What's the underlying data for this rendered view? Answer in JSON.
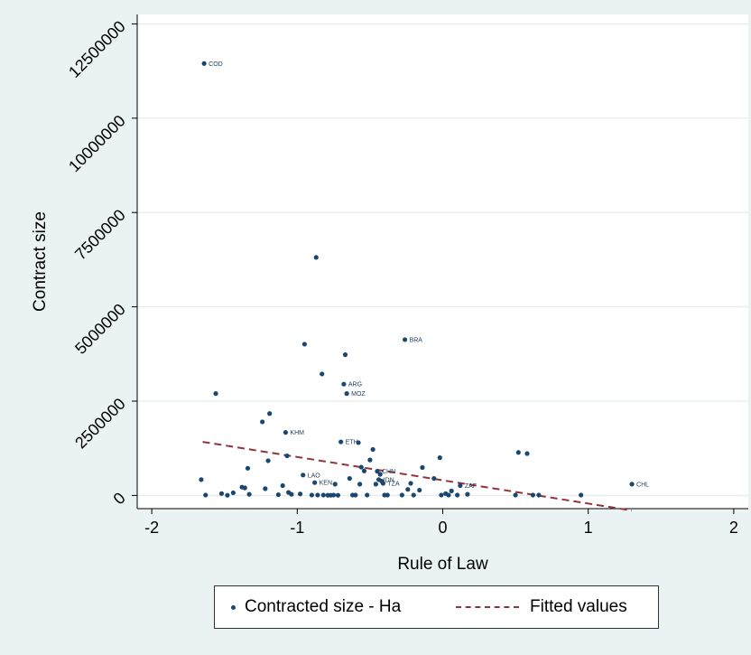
{
  "chart_data": {
    "type": "scatter",
    "xlabel": "Rule of Law",
    "ylabel": "Contract size",
    "xlim": [
      -2.1,
      2.1
    ],
    "ylim": [
      -350000,
      12750000
    ],
    "x_ticks": [
      -2,
      -1,
      0,
      1,
      2
    ],
    "x_tick_labels": [
      "-2",
      "-1",
      "0",
      "1",
      "2"
    ],
    "y_ticks": [
      0,
      2500000,
      5000000,
      7500000,
      10000000,
      12500000
    ],
    "y_tick_labels": [
      "0",
      "2500000",
      "5000000",
      "7500000",
      "10000000",
      "12500000"
    ],
    "grid": "horizontal",
    "colors": {
      "points": "#1a476f",
      "fit": "#90353b",
      "plot_bg": "#ffffff",
      "outer_bg": "#eaf2f3"
    },
    "legend": {
      "position": "bottom",
      "entries": [
        "Contracted size - Ha",
        "Fitted values"
      ]
    },
    "series": [
      {
        "name": "Contracted size - Ha",
        "type": "scatter",
        "points": [
          {
            "x": -1.64,
            "y": 11450000,
            "label": "COD"
          },
          {
            "x": -1.56,
            "y": 2700000
          },
          {
            "x": -1.66,
            "y": 420000
          },
          {
            "x": -1.63,
            "y": 10000
          },
          {
            "x": -1.52,
            "y": 50000
          },
          {
            "x": -1.48,
            "y": 5000
          },
          {
            "x": -1.44,
            "y": 70000
          },
          {
            "x": -1.38,
            "y": 220000
          },
          {
            "x": -1.36,
            "y": 200000
          },
          {
            "x": -1.34,
            "y": 720000
          },
          {
            "x": -1.33,
            "y": 30000
          },
          {
            "x": -1.24,
            "y": 1950000
          },
          {
            "x": -1.22,
            "y": 180000
          },
          {
            "x": -1.2,
            "y": 920000
          },
          {
            "x": -1.19,
            "y": 2170000
          },
          {
            "x": -1.13,
            "y": 20000
          },
          {
            "x": -1.1,
            "y": 260000
          },
          {
            "x": -1.08,
            "y": 1670000,
            "label": "KHM"
          },
          {
            "x": -1.07,
            "y": 1050000
          },
          {
            "x": -1.06,
            "y": 80000
          },
          {
            "x": -1.04,
            "y": 30000
          },
          {
            "x": -0.98,
            "y": 40000
          },
          {
            "x": -0.96,
            "y": 540000,
            "label": "LAO"
          },
          {
            "x": -0.95,
            "y": 4010000
          },
          {
            "x": -0.9,
            "y": 10000
          },
          {
            "x": -0.88,
            "y": 340000,
            "label": "KEN"
          },
          {
            "x": -0.87,
            "y": 6310000
          },
          {
            "x": -0.86,
            "y": 10000
          },
          {
            "x": -0.83,
            "y": 3220000
          },
          {
            "x": -0.82,
            "y": 10000
          },
          {
            "x": -0.79,
            "y": 5000
          },
          {
            "x": -0.77,
            "y": 5000
          },
          {
            "x": -0.75,
            "y": 10000
          },
          {
            "x": -0.74,
            "y": 300000
          },
          {
            "x": -0.72,
            "y": 5000
          },
          {
            "x": -0.7,
            "y": 1420000,
            "label": "ETH"
          },
          {
            "x": -0.68,
            "y": 2950000,
            "label": "ARG"
          },
          {
            "x": -0.67,
            "y": 3730000
          },
          {
            "x": -0.66,
            "y": 2700000,
            "label": "MOZ"
          },
          {
            "x": -0.64,
            "y": 450000
          },
          {
            "x": -0.62,
            "y": 10000
          },
          {
            "x": -0.6,
            "y": 10000
          },
          {
            "x": -0.58,
            "y": 1400000
          },
          {
            "x": -0.57,
            "y": 300000
          },
          {
            "x": -0.56,
            "y": 750000
          },
          {
            "x": -0.54,
            "y": 650000
          },
          {
            "x": -0.52,
            "y": 10000
          },
          {
            "x": -0.5,
            "y": 940000
          },
          {
            "x": -0.48,
            "y": 1220000
          },
          {
            "x": -0.46,
            "y": 300000
          },
          {
            "x": -0.45,
            "y": 640000,
            "label": "CHN"
          },
          {
            "x": -0.44,
            "y": 420000,
            "label": "IDN"
          },
          {
            "x": -0.43,
            "y": 560000
          },
          {
            "x": -0.42,
            "y": 380000
          },
          {
            "x": -0.41,
            "y": 320000,
            "label": "TZA"
          },
          {
            "x": -0.4,
            "y": 10000
          },
          {
            "x": -0.38,
            "y": 10000
          },
          {
            "x": -0.26,
            "y": 4130000,
            "label": "BRA"
          },
          {
            "x": -0.28,
            "y": 10000
          },
          {
            "x": -0.24,
            "y": 160000
          },
          {
            "x": -0.22,
            "y": 320000
          },
          {
            "x": -0.2,
            "y": 10000
          },
          {
            "x": -0.16,
            "y": 140000
          },
          {
            "x": -0.14,
            "y": 740000
          },
          {
            "x": -0.06,
            "y": 450000
          },
          {
            "x": -0.02,
            "y": 1000000
          },
          {
            "x": -0.01,
            "y": 10000
          },
          {
            "x": 0.02,
            "y": 50000
          },
          {
            "x": 0.04,
            "y": 10000
          },
          {
            "x": 0.06,
            "y": 120000
          },
          {
            "x": 0.1,
            "y": 10000
          },
          {
            "x": 0.12,
            "y": 260000,
            "label": "ZAF"
          },
          {
            "x": 0.17,
            "y": 30000
          },
          {
            "x": 0.5,
            "y": 10000
          },
          {
            "x": 0.52,
            "y": 1140000
          },
          {
            "x": 0.58,
            "y": 1110000
          },
          {
            "x": 0.62,
            "y": 10000
          },
          {
            "x": 0.66,
            "y": 10000
          },
          {
            "x": 0.95,
            "y": 10000
          },
          {
            "x": 1.3,
            "y": 300000,
            "label": "CHL"
          }
        ]
      },
      {
        "name": "Fitted values",
        "type": "line",
        "style": "dashed",
        "x": [
          -1.65,
          1.3
        ],
        "y": [
          1420000,
          -400000
        ]
      }
    ]
  }
}
